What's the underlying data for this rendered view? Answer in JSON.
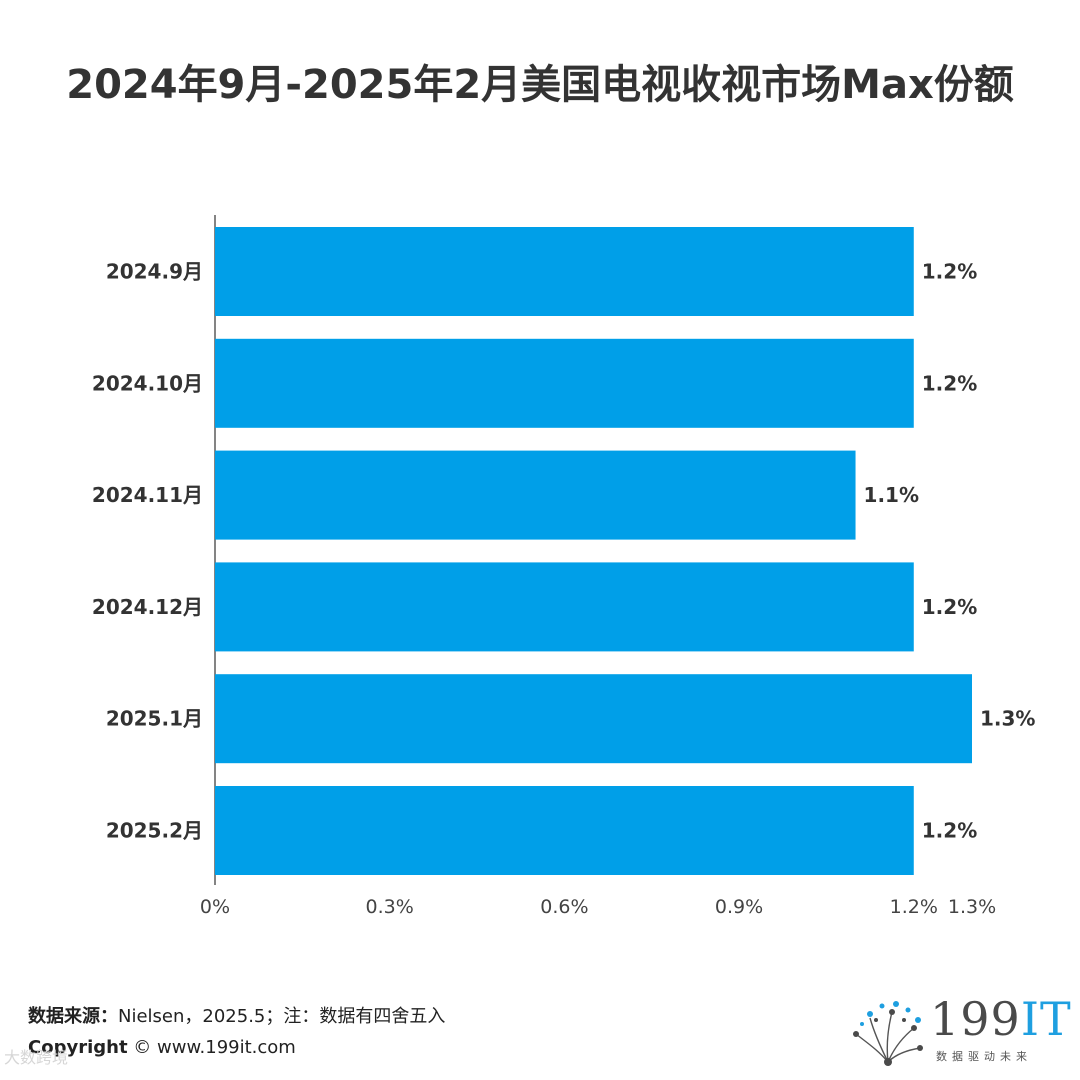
{
  "title": "2024年9月-2025年2月美国电视收视市场Max份额",
  "colors": {
    "bar": "#009FE8",
    "axis": "#333333",
    "text": "#333333"
  },
  "chart_data": {
    "type": "bar",
    "orientation": "horizontal",
    "title": "2024年9月-2025年2月美国电视收视市场Max份额",
    "categories": [
      "2024.9月",
      "2024.10月",
      "2024.11月",
      "2024.12月",
      "2025.1月",
      "2025.2月"
    ],
    "values": [
      1.2,
      1.2,
      1.1,
      1.2,
      1.3,
      1.2
    ],
    "value_labels": [
      "1.2%",
      "1.2%",
      "1.1%",
      "1.2%",
      "1.3%",
      "1.2%"
    ],
    "xlim": [
      0,
      1.3
    ],
    "x_ticks": [
      0,
      0.3,
      0.6,
      0.9,
      1.2,
      1.3
    ],
    "x_tick_labels": [
      "0%",
      "0.3%",
      "0.6%",
      "0.9%",
      "1.2%",
      "1.3%"
    ],
    "xlabel": "",
    "ylabel": "",
    "grid": false
  },
  "footer": {
    "source_label": "数据来源：",
    "source_text": "Nielsen，2025.5；注：数据有四舍五入",
    "copyright_label": "Copyright",
    "copyright_text": "© www.199it.com",
    "watermark": "大数跨境"
  },
  "logo": {
    "text_main": "199",
    "text_it": "IT",
    "tagline": "数据驱动未来"
  }
}
